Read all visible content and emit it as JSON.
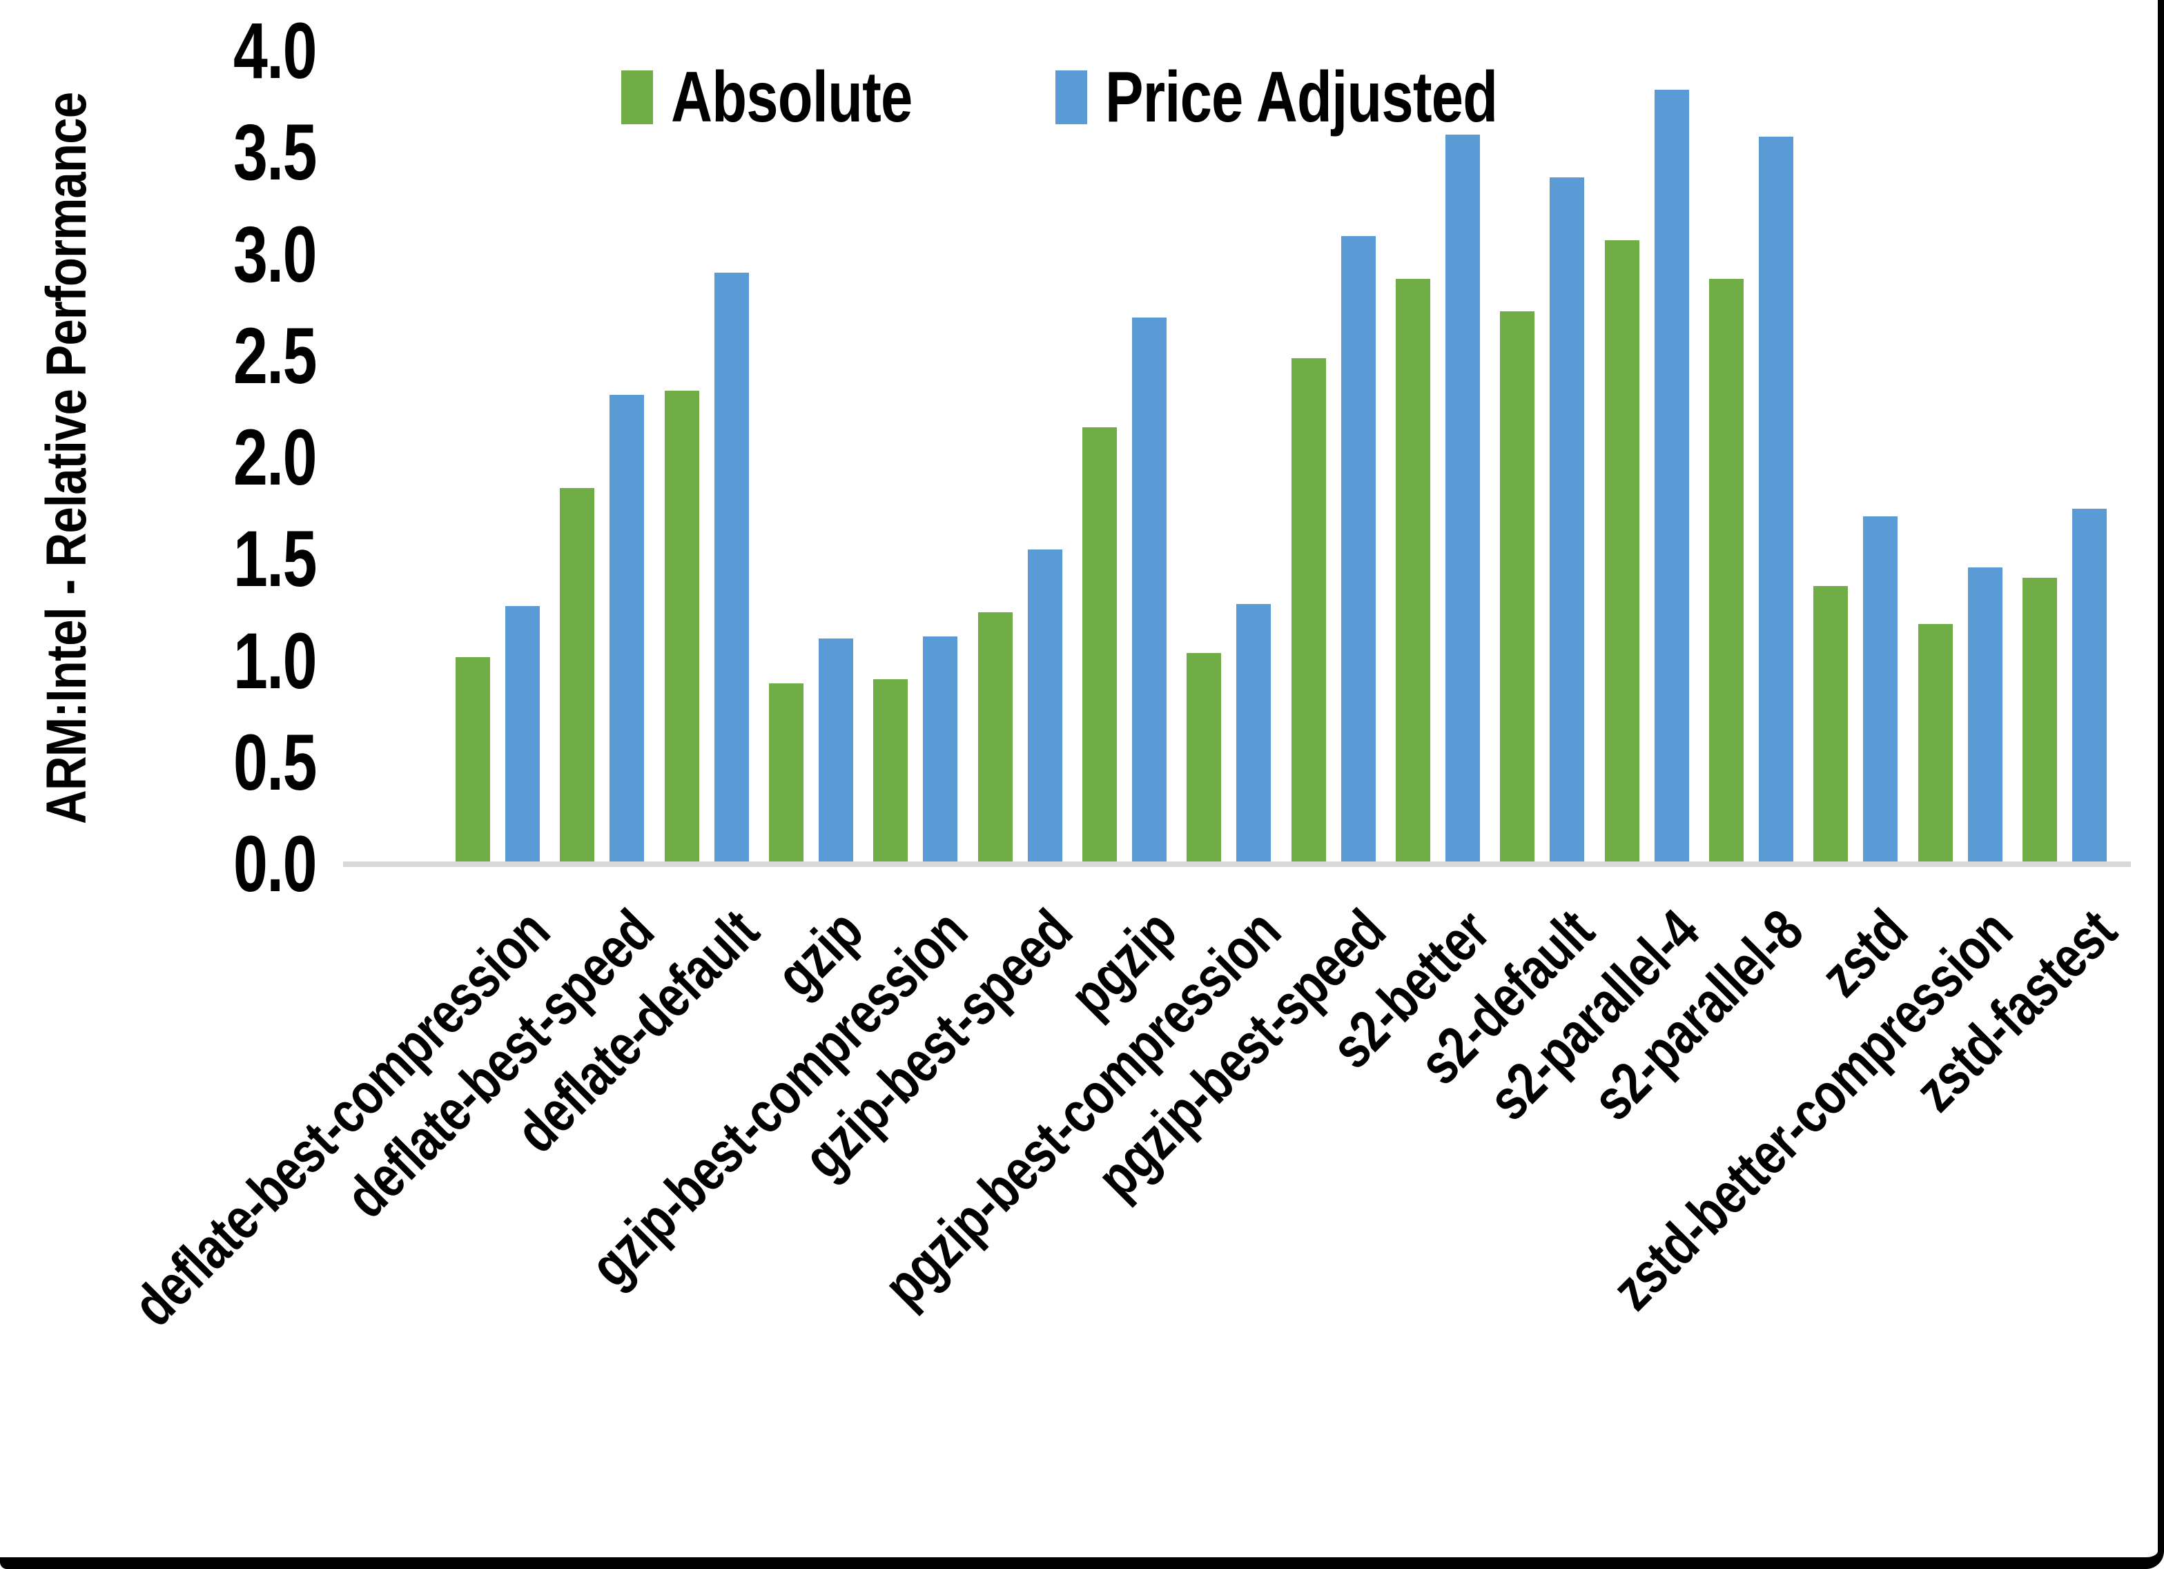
{
  "chart_data": {
    "type": "bar",
    "title": "",
    "ylabel": "ARM:Intel - Relative Performance",
    "xlabel": "",
    "ylim": [
      0.0,
      4.0
    ],
    "ytick_step": 0.5,
    "ytick_labels": [
      "4.0",
      "3.5",
      "3.0",
      "2.5",
      "2.0",
      "1.5",
      "1.0",
      "0.5",
      "0.0"
    ],
    "grid": "off",
    "legend_position": "top-center",
    "categories": [
      "deflate-best-compression",
      "deflate-best-speed",
      "deflate-default",
      "gzip",
      "gzip-best-compression",
      "gzip-best-speed",
      "pgzip",
      "pgzip-best-compression",
      "pgzip-best-speed",
      "s2-better",
      "s2-default",
      "s2-parallel-4",
      "s2-parallel-8",
      "zstd",
      "zstd-better-compression",
      "zstd-fastest"
    ],
    "series": [
      {
        "name": "Absolute",
        "color": "#70AD47",
        "values": [
          1.02,
          1.85,
          2.33,
          0.89,
          0.91,
          1.24,
          2.15,
          1.04,
          2.49,
          2.88,
          2.72,
          3.07,
          2.88,
          1.37,
          1.18,
          1.41
        ]
      },
      {
        "name": "Price Adjusted",
        "color": "#5B9BD5",
        "values": [
          1.27,
          2.31,
          2.91,
          1.11,
          1.12,
          1.55,
          2.69,
          1.28,
          3.09,
          3.59,
          3.38,
          3.81,
          3.58,
          1.71,
          1.46,
          1.75
        ]
      }
    ],
    "axis_line_color": "#d9d9d9",
    "text_color": "#000000"
  }
}
